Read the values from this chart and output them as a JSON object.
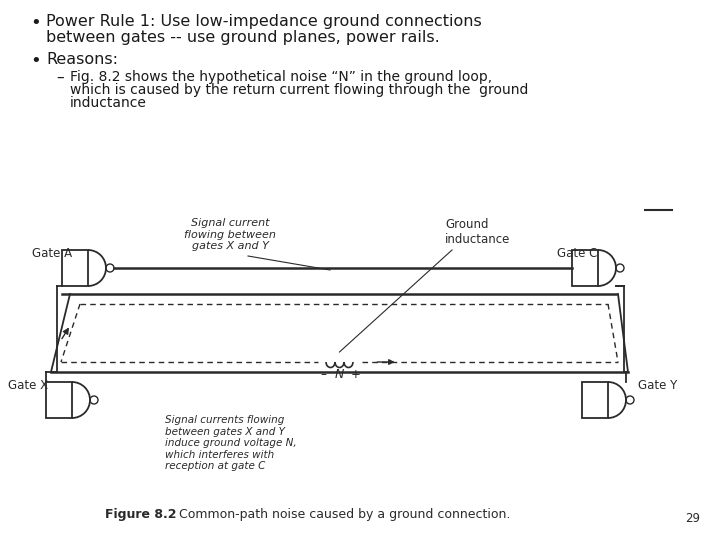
{
  "bg_color": "#ffffff",
  "bullet1_line1": "Power Rule 1: Use low-impedance ground connections",
  "bullet1_line2": "between gates -- use ground planes, power rails.",
  "bullet2": "Reasons:",
  "sub_bullet_line1": "Fig. 8.2 shows the hypothetical noise “N” in the ground loop,",
  "sub_bullet_line2": "which is caused by the return current flowing through the  ground",
  "sub_bullet_line3": "inductance",
  "figure_caption_bold": "Figure 8.2",
  "figure_caption_normal": "   Common-path noise caused by a ground connection.",
  "page_number": "29",
  "text_color": "#1a1a1a",
  "diagram_color": "#2a2a2a",
  "label_signal": "Signal current\nflowing between\ngates X and Y",
  "label_ground": "Ground\ninductance",
  "label_bottom": "Signal currents flowing\nbetween gates X and Y\ninduce ground voltage N,\nwhich interferes with\nreception at gate C",
  "gate_a_label": "Gate A",
  "gate_c_label": "Gate C",
  "gate_x_label": "Gate X",
  "gate_y_label": "Gate Y",
  "n_minus": "–",
  "n_label": "N",
  "n_plus": "+"
}
